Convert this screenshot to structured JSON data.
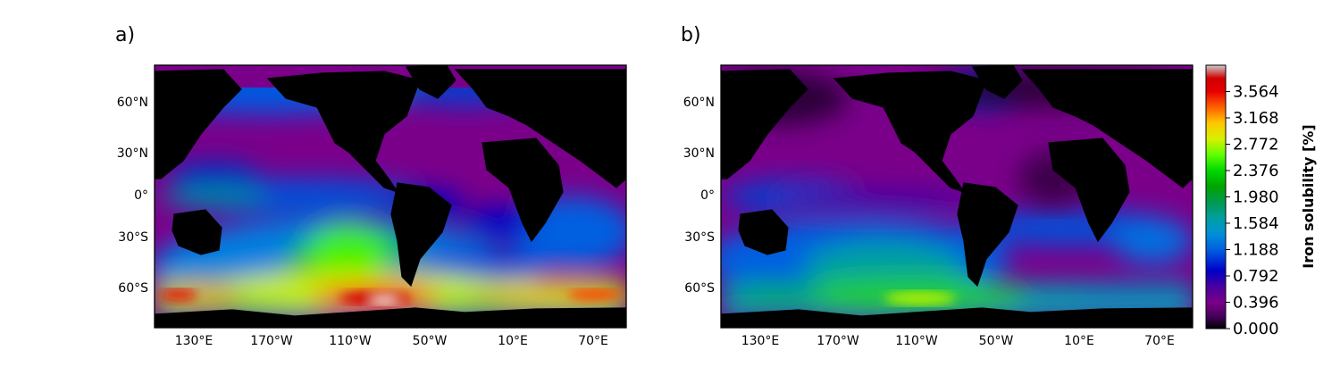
{
  "panels": [
    {
      "label": "a)",
      "lon_ticks": [
        "130°E",
        "170°W",
        "110°W",
        "50°W",
        "10°E",
        "70°E"
      ],
      "lat_ticks": [
        "60°N",
        "30°N",
        "0°",
        "30°S",
        "60°S"
      ]
    },
    {
      "label": "b)",
      "lon_ticks": [
        "130°E",
        "170°W",
        "110°W",
        "50°W",
        "10°E",
        "70°E"
      ],
      "lat_ticks": [
        "60°N",
        "30°N",
        "0°",
        "30°S",
        "60°S"
      ]
    }
  ],
  "colorbar": {
    "label": "Iron solubility [%]",
    "ticks": [
      "0.000",
      "0.396",
      "0.792",
      "1.188",
      "1.584",
      "1.980",
      "2.376",
      "2.772",
      "3.168",
      "3.564"
    ],
    "colormap": "nipy_spectral"
  },
  "chart_data": [
    {
      "type": "heatmap",
      "title": "a)",
      "map_projection": "PlateCarree, centered 160°W",
      "x_ticks": [
        "130°E",
        "170°W",
        "110°W",
        "50°W",
        "10°E",
        "70°E"
      ],
      "y_ticks": [
        "60°N",
        "30°N",
        "0°",
        "30°S",
        "60°S"
      ],
      "zlim": [
        0.0,
        3.96
      ],
      "features": [
        {
          "region": "Southern Ocean ~60°S 110°W-60°W",
          "value": 3.8
        },
        {
          "region": "Southern Ocean ~60°S south Indian Ocean",
          "value": 3.2
        },
        {
          "region": "Southern Ocean ~60°S near 130°E",
          "value": 3.0
        },
        {
          "region": "South Pacific mid-latitudes",
          "value": 1.9
        },
        {
          "region": "Equatorial Pacific",
          "value": 0.8
        },
        {
          "region": "North Pacific",
          "value": 1.0
        },
        {
          "region": "Subtropical Atlantic",
          "value": 0.3
        },
        {
          "region": "Continents",
          "value": 0.0
        }
      ]
    },
    {
      "type": "heatmap",
      "title": "b)",
      "map_projection": "PlateCarree, centered 160°W",
      "x_ticks": [
        "130°E",
        "170°W",
        "110°W",
        "50°W",
        "10°E",
        "70°E"
      ],
      "y_ticks": [
        "60°N",
        "30°N",
        "0°",
        "30°S",
        "60°S"
      ],
      "zlim": [
        0.0,
        3.96
      ],
      "features": [
        {
          "region": "Southern Ocean ~60°S 110°W",
          "value": 2.4
        },
        {
          "region": "South Pacific mid-latitudes",
          "value": 1.3
        },
        {
          "region": "Equatorial/North Pacific",
          "value": 0.4
        },
        {
          "region": "Atlantic",
          "value": 0.2
        },
        {
          "region": "Continents",
          "value": 0.0
        }
      ]
    }
  ]
}
